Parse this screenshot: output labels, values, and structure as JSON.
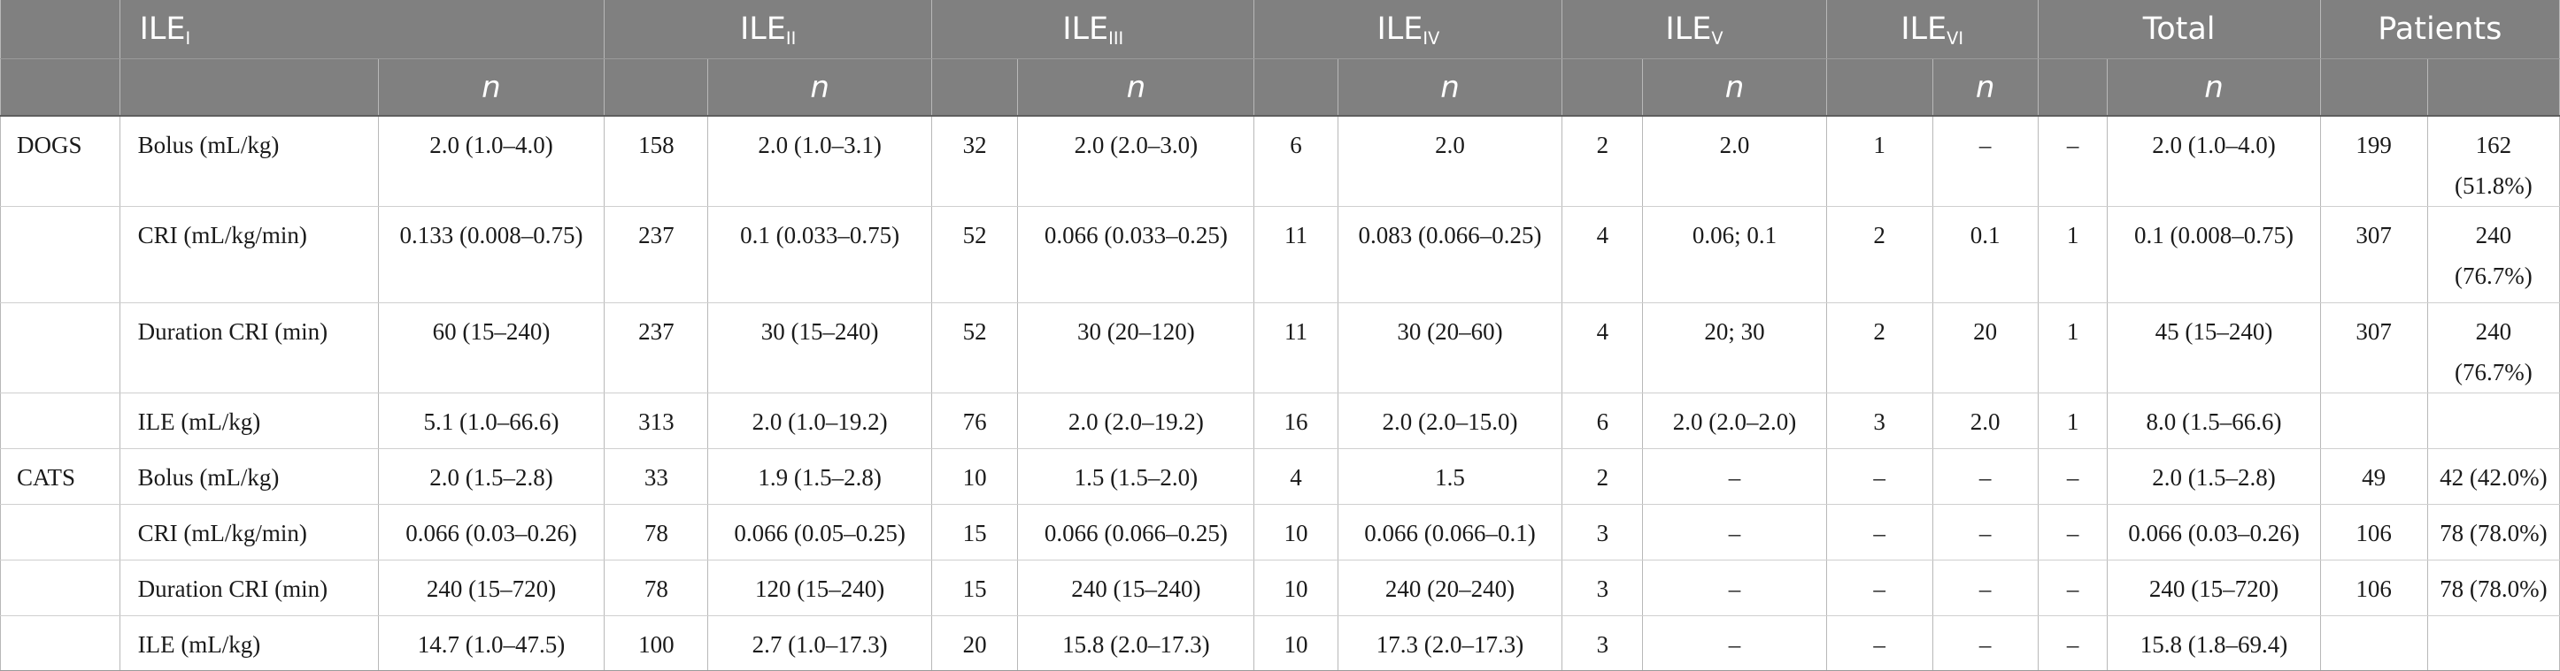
{
  "header": {
    "col_groups": [
      "ILE",
      "ILE",
      "ILE",
      "ILE",
      "ILE",
      "ILE",
      "Total",
      "Patients"
    ],
    "col_subscripts": [
      "I",
      "II",
      "III",
      "IV",
      "V",
      "VI"
    ],
    "n_label": "n"
  },
  "rows": [
    {
      "species": "DOGS",
      "param": "Bolus (mL/kg)",
      "cells": [
        "2.0 (1.0–4.0)",
        "158",
        "2.0 (1.0–3.1)",
        "32",
        "2.0 (2.0–3.0)",
        "6",
        "2.0",
        "2",
        "2.0",
        "1",
        "–",
        "–",
        "2.0 (1.0–4.0)",
        "199",
        "162 (51.8%)"
      ]
    },
    {
      "species": "",
      "param": "CRI (mL/kg/min)",
      "cells": [
        "0.133 (0.008–0.75)",
        "237",
        "0.1 (0.033–0.75)",
        "52",
        "0.066 (0.033–0.25)",
        "11",
        "0.083 (0.066–0.25)",
        "4",
        "0.06; 0.1",
        "2",
        "0.1",
        "1",
        "0.1 (0.008–0.75)",
        "307",
        "240 (76.7%)"
      ]
    },
    {
      "species": "",
      "param": "Duration CRI (min)",
      "cells": [
        "60 (15–240)",
        "237",
        "30 (15–240)",
        "52",
        "30 (20–120)",
        "11",
        "30 (20–60)",
        "4",
        "20; 30",
        "2",
        "20",
        "1",
        "45 (15–240)",
        "307",
        "240 (76.7%)"
      ]
    },
    {
      "species": "",
      "param": "ILE (mL/kg)",
      "cells": [
        "5.1 (1.0–66.6)",
        "313",
        "2.0 (1.0–19.2)",
        "76",
        "2.0 (2.0–19.2)",
        "16",
        "2.0 (2.0–15.0)",
        "6",
        "2.0 (2.0–2.0)",
        "3",
        "2.0",
        "1",
        "8.0 (1.5–66.6)",
        "",
        ""
      ]
    },
    {
      "species": "CATS",
      "param": "Bolus (mL/kg)",
      "cells": [
        "2.0 (1.5–2.8)",
        "33",
        "1.9 (1.5–2.8)",
        "10",
        "1.5 (1.5–2.0)",
        "4",
        "1.5",
        "2",
        "–",
        "–",
        "–",
        "–",
        "2.0 (1.5–2.8)",
        "49",
        "42 (42.0%)"
      ]
    },
    {
      "species": "",
      "param": "CRI (mL/kg/min)",
      "cells": [
        "0.066 (0.03–0.26)",
        "78",
        "0.066 (0.05–0.25)",
        "15",
        "0.066 (0.066–0.25)",
        "10",
        "0.066 (0.066–0.1)",
        "3",
        "–",
        "–",
        "–",
        "–",
        "0.066 (0.03–0.26)",
        "106",
        "78 (78.0%)"
      ]
    },
    {
      "species": "",
      "param": "Duration CRI (min)",
      "cells": [
        "240 (15–720)",
        "78",
        "120 (15–240)",
        "15",
        "240 (15–240)",
        "10",
        "240 (20–240)",
        "3",
        "–",
        "–",
        "–",
        "–",
        "240 (15–720)",
        "106",
        "78 (78.0%)"
      ]
    },
    {
      "species": "",
      "param": "ILE (mL/kg)",
      "cells": [
        "14.7 (1.0–47.5)",
        "100",
        "2.7 (1.0–17.3)",
        "20",
        "15.8 (2.0–17.3)",
        "10",
        "17.3 (2.0–17.3)",
        "3",
        "–",
        "–",
        "–",
        "–",
        "15.8 (1.8–69.4)",
        "",
        ""
      ]
    }
  ]
}
